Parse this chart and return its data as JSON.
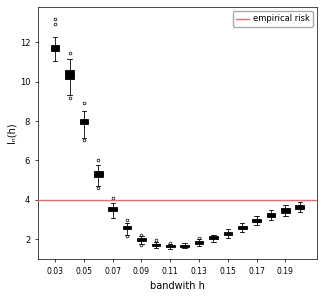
{
  "xlabel": "bandwith h",
  "ylabel": "Iₙ(h)",
  "empirical_risk_value": 3.97,
  "empirical_risk_color": "#e07070",
  "legend_label": "empirical risk",
  "ylim": [
    1.0,
    13.8
  ],
  "xlim": [
    0.018,
    0.212
  ],
  "background_color": "#f0f0f0",
  "x_ticks": [
    0.03,
    0.05,
    0.07,
    0.09,
    0.11,
    0.13,
    0.15,
    0.17,
    0.19
  ],
  "y_ticks": [
    2,
    4,
    6,
    8,
    10,
    12
  ],
  "bandwidths": [
    0.03,
    0.04,
    0.05,
    0.06,
    0.07,
    0.08,
    0.09,
    0.1,
    0.11,
    0.12,
    0.13,
    0.14,
    0.15,
    0.16,
    0.17,
    0.18,
    0.19,
    0.2
  ],
  "box_data": {
    "0.03": {
      "q1": 11.55,
      "median": 11.72,
      "q3": 11.88,
      "whislo": 11.05,
      "whishi": 12.28,
      "fliers": [
        12.95,
        13.2
      ]
    },
    "0.04": {
      "q1": 10.15,
      "median": 10.4,
      "q3": 10.62,
      "whislo": 9.35,
      "whishi": 11.15,
      "fliers": [
        11.48,
        9.18
      ]
    },
    "0.05": {
      "q1": 7.83,
      "median": 7.97,
      "q3": 8.12,
      "whislo": 7.15,
      "whishi": 8.52,
      "fliers": [
        8.9,
        7.05
      ]
    },
    "0.06": {
      "q1": 5.18,
      "median": 5.3,
      "q3": 5.44,
      "whislo": 4.72,
      "whishi": 5.75,
      "fliers": [
        6.0,
        4.6
      ]
    },
    "0.07": {
      "q1": 3.44,
      "median": 3.55,
      "q3": 3.65,
      "whislo": 3.08,
      "whishi": 3.82,
      "fliers": [
        4.1
      ]
    },
    "0.08": {
      "q1": 2.5,
      "median": 2.59,
      "q3": 2.67,
      "whislo": 2.22,
      "whishi": 2.82,
      "fliers": [
        2.95,
        2.15
      ]
    },
    "0.09": {
      "q1": 1.93,
      "median": 2.0,
      "q3": 2.06,
      "whislo": 1.73,
      "whishi": 2.15,
      "fliers": [
        2.22,
        1.68
      ]
    },
    "0.10": {
      "q1": 1.67,
      "median": 1.73,
      "q3": 1.78,
      "whislo": 1.55,
      "whishi": 1.88,
      "fliers": [
        1.95
      ]
    },
    "0.11": {
      "q1": 1.59,
      "median": 1.65,
      "q3": 1.7,
      "whislo": 1.5,
      "whishi": 1.78,
      "fliers": [
        1.82
      ]
    },
    "0.12": {
      "q1": 1.62,
      "median": 1.67,
      "q3": 1.72,
      "whislo": 1.54,
      "whishi": 1.8,
      "fliers": []
    },
    "0.13": {
      "q1": 1.78,
      "median": 1.85,
      "q3": 1.92,
      "whislo": 1.65,
      "whishi": 2.0,
      "fliers": [
        2.08
      ]
    },
    "0.14": {
      "q1": 2.0,
      "median": 2.08,
      "q3": 2.15,
      "whislo": 1.85,
      "whishi": 2.22,
      "fliers": []
    },
    "0.15": {
      "q1": 2.2,
      "median": 2.28,
      "q3": 2.38,
      "whislo": 2.05,
      "whishi": 2.5,
      "fliers": []
    },
    "0.16": {
      "q1": 2.5,
      "median": 2.6,
      "q3": 2.68,
      "whislo": 2.38,
      "whishi": 2.8,
      "fliers": []
    },
    "0.17": {
      "q1": 2.87,
      "median": 2.95,
      "q3": 3.05,
      "whislo": 2.72,
      "whishi": 3.2,
      "fliers": []
    },
    "0.18": {
      "q1": 3.14,
      "median": 3.25,
      "q3": 3.35,
      "whislo": 2.98,
      "whishi": 3.5,
      "fliers": []
    },
    "0.19": {
      "q1": 3.34,
      "median": 3.48,
      "q3": 3.6,
      "whislo": 3.18,
      "whishi": 3.72,
      "fliers": []
    },
    "0.20": {
      "q1": 3.54,
      "median": 3.65,
      "q3": 3.75,
      "whislo": 3.38,
      "whishi": 3.9,
      "fliers": [
        3.58
      ]
    }
  }
}
